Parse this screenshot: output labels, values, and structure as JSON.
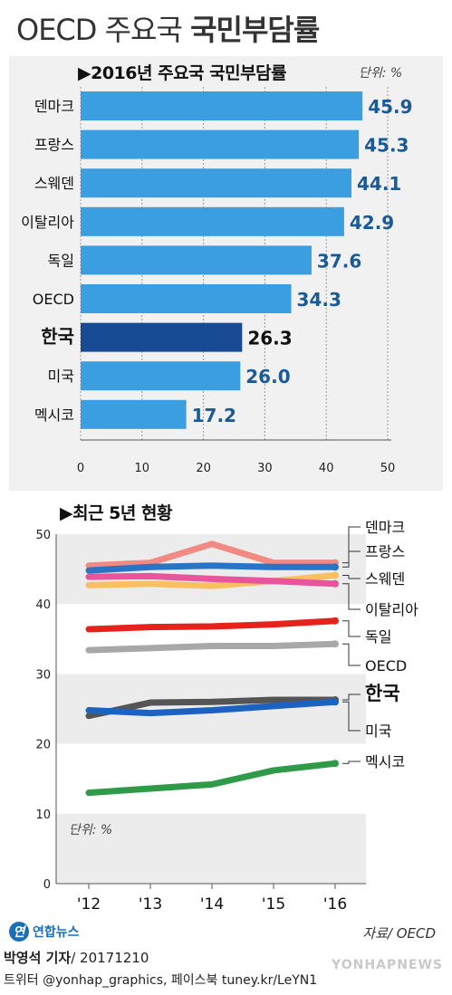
{
  "header": {
    "title_light": "OECD 주요국",
    "title_bold": "국민부담률"
  },
  "chart_data": [
    {
      "type": "bar",
      "title": "▶2016년 주요국 국민부담률",
      "unit": "단위: %",
      "categories": [
        "덴마크",
        "프랑스",
        "스웨덴",
        "이탈리아",
        "독일",
        "OECD",
        "한국",
        "미국",
        "멕시코"
      ],
      "values": [
        45.9,
        45.3,
        44.1,
        42.9,
        37.6,
        34.3,
        26.3,
        26.0,
        17.2
      ],
      "value_labels": [
        "45.9",
        "45.3",
        "44.1",
        "42.9",
        "37.6",
        "34.3",
        "26.3",
        "26.0",
        "17.2"
      ],
      "highlight": "한국",
      "xlim": [
        0,
        50
      ],
      "x_ticks": [
        "0",
        "10",
        "20",
        "30",
        "40",
        "50"
      ],
      "colors": {
        "bar": "#3b9ee0",
        "highlight_bar": "#174a93",
        "label": "#1a5a96",
        "highlight_label": "#111111"
      }
    },
    {
      "type": "line",
      "title": "▶최근 5년 현황",
      "unit": "단위: %",
      "x": [
        "'12",
        "'13",
        "'14",
        "'15",
        "'16"
      ],
      "ylim": [
        0,
        50
      ],
      "y_ticks": [
        "0",
        "10",
        "20",
        "30",
        "40",
        "50"
      ],
      "series": [
        {
          "name": "덴마크",
          "color": "#f08a83",
          "values": [
            45.5,
            45.9,
            48.6,
            45.9,
            45.9
          ]
        },
        {
          "name": "프랑스",
          "color": "#2a74c6",
          "values": [
            44.8,
            45.3,
            45.5,
            45.3,
            45.3
          ]
        },
        {
          "name": "스웨덴",
          "color": "#f8c062",
          "values": [
            42.7,
            42.9,
            42.6,
            43.3,
            44.1
          ]
        },
        {
          "name": "이탈리아",
          "color": "#e8559c",
          "values": [
            43.9,
            44.0,
            43.6,
            43.3,
            42.9
          ]
        },
        {
          "name": "독일",
          "color": "#e5231c",
          "values": [
            36.4,
            36.7,
            36.8,
            37.1,
            37.6
          ]
        },
        {
          "name": "OECD",
          "color": "#a8a8a8",
          "values": [
            33.4,
            33.7,
            34.0,
            34.0,
            34.3
          ]
        },
        {
          "name": "한국",
          "color": "#555555",
          "values": [
            24.0,
            25.9,
            26.0,
            26.3,
            26.3
          ]
        },
        {
          "name": "미국",
          "color": "#1c62c2",
          "values": [
            24.8,
            24.4,
            24.8,
            25.4,
            26.0
          ]
        },
        {
          "name": "멕시코",
          "color": "#2f9a48",
          "values": [
            13.0,
            13.6,
            14.2,
            16.2,
            17.2
          ]
        }
      ],
      "bold_labels": [
        "한국"
      ]
    }
  ],
  "footer": {
    "logo_mark": "연",
    "logo_text": "연합뉴스",
    "source": "자료/ OECD",
    "reporter": "박영석 기자",
    "date": "/ 20171210",
    "sns": "트위터 @yonhap_graphics, 페이스북 tuney.kr/LeYN1",
    "watermark": "YONHAPNEWS"
  }
}
